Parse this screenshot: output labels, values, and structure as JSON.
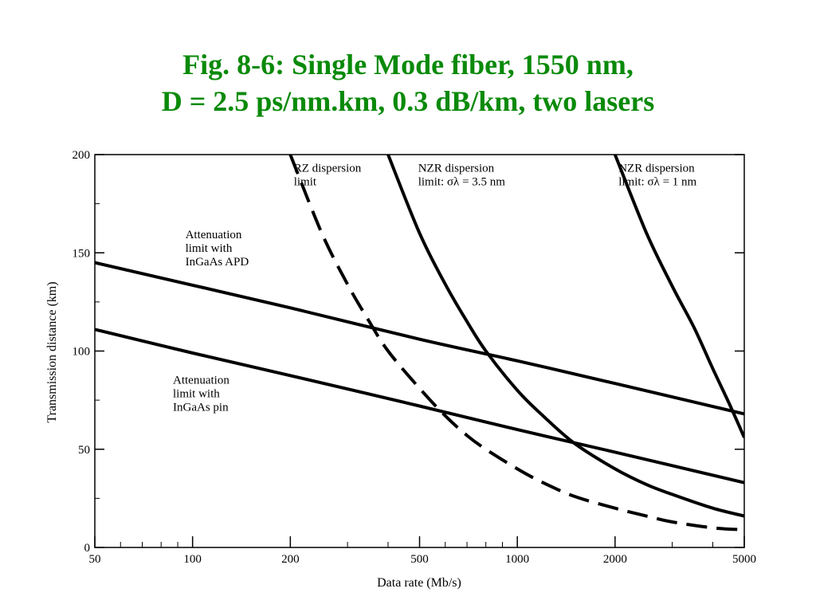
{
  "slide": {
    "title_line1": "Fig. 8-6: Single Mode fiber, 1550 nm,",
    "title_line2": "D = 2.5 ps/nm.km, 0.3 dB/km, two lasers"
  },
  "chart_data": {
    "type": "line",
    "title": "",
    "xlabel": "Data rate (Mb/s)",
    "ylabel": "Transmission distance (km)",
    "xscale": "log",
    "xlim": [
      50,
      5000
    ],
    "ylim": [
      0,
      200
    ],
    "xticks": [
      {
        "value": 50,
        "label": "50"
      },
      {
        "value": 100,
        "label": "100"
      },
      {
        "value": 200,
        "label": "200"
      },
      {
        "value": 500,
        "label": "500"
      },
      {
        "value": 1000,
        "label": "1000"
      },
      {
        "value": 2000,
        "label": "2000"
      },
      {
        "value": 5000,
        "label": "5000"
      }
    ],
    "yticks": [
      {
        "value": 0,
        "label": "0"
      },
      {
        "value": 50,
        "label": "50"
      },
      {
        "value": 100,
        "label": "100"
      },
      {
        "value": 150,
        "label": "150"
      },
      {
        "value": 200,
        "label": "200"
      }
    ],
    "grid": false,
    "series": [
      {
        "name": "Attenuation limit with InGaAs APD",
        "style": "solid",
        "x": [
          50,
          100,
          200,
          500,
          1000,
          2000,
          5000
        ],
        "y": [
          145,
          133.5,
          122,
          106,
          95,
          83.5,
          68
        ]
      },
      {
        "name": "Attenuation limit with InGaAs pin",
        "style": "solid",
        "x": [
          50,
          100,
          200,
          500,
          1000,
          2000,
          5000
        ],
        "y": [
          111,
          99,
          87.5,
          72,
          60,
          48.5,
          33
        ]
      },
      {
        "name": "RZ dispersion limit",
        "style": "dashed",
        "x": [
          200,
          250,
          300,
          350,
          400,
          500,
          600,
          700,
          800,
          1000,
          1200,
          1500,
          2000,
          2500,
          3000,
          4000,
          5000
        ],
        "y": [
          200,
          160,
          134,
          115,
          100,
          81,
          67,
          57,
          50,
          40,
          33,
          26,
          20,
          16,
          13,
          10,
          9
        ]
      },
      {
        "name": "NZR dispersion limit: σλ = 3.5 nm",
        "style": "solid",
        "x": [
          400,
          500,
          600,
          700,
          800,
          1000,
          1200,
          1500,
          2000,
          2500,
          3000,
          4000,
          5000
        ],
        "y": [
          200,
          160,
          134,
          115,
          100,
          80,
          67,
          53,
          40,
          32,
          27,
          20,
          16
        ]
      },
      {
        "name": "NZR dispersion limit: σλ = 1 nm",
        "style": "solid",
        "x": [
          2000,
          2500,
          3000,
          3500,
          4000,
          4500,
          5000
        ],
        "y": [
          200,
          160,
          133,
          112,
          91,
          73,
          56
        ]
      }
    ],
    "annotations": [
      {
        "key": "rz",
        "lines": [
          "RZ dispersion",
          "limit"
        ],
        "x": 205,
        "y": 197
      },
      {
        "key": "nzr35",
        "lines": [
          "NZR dispersion",
          "limit: σλ = 3.5 nm"
        ],
        "x": 495,
        "y": 197
      },
      {
        "key": "nzr1",
        "lines": [
          "NZR dispersion",
          "limit: σλ = 1 nm"
        ],
        "x": 2050,
        "y": 197
      },
      {
        "key": "apd",
        "lines": [
          "Attenuation",
          "limit with",
          "InGaAs APD"
        ],
        "x": 95,
        "y": 163
      },
      {
        "key": "pin",
        "lines": [
          "Attenuation",
          "limit with",
          "InGaAs pin"
        ],
        "x": 87,
        "y": 89
      }
    ]
  }
}
